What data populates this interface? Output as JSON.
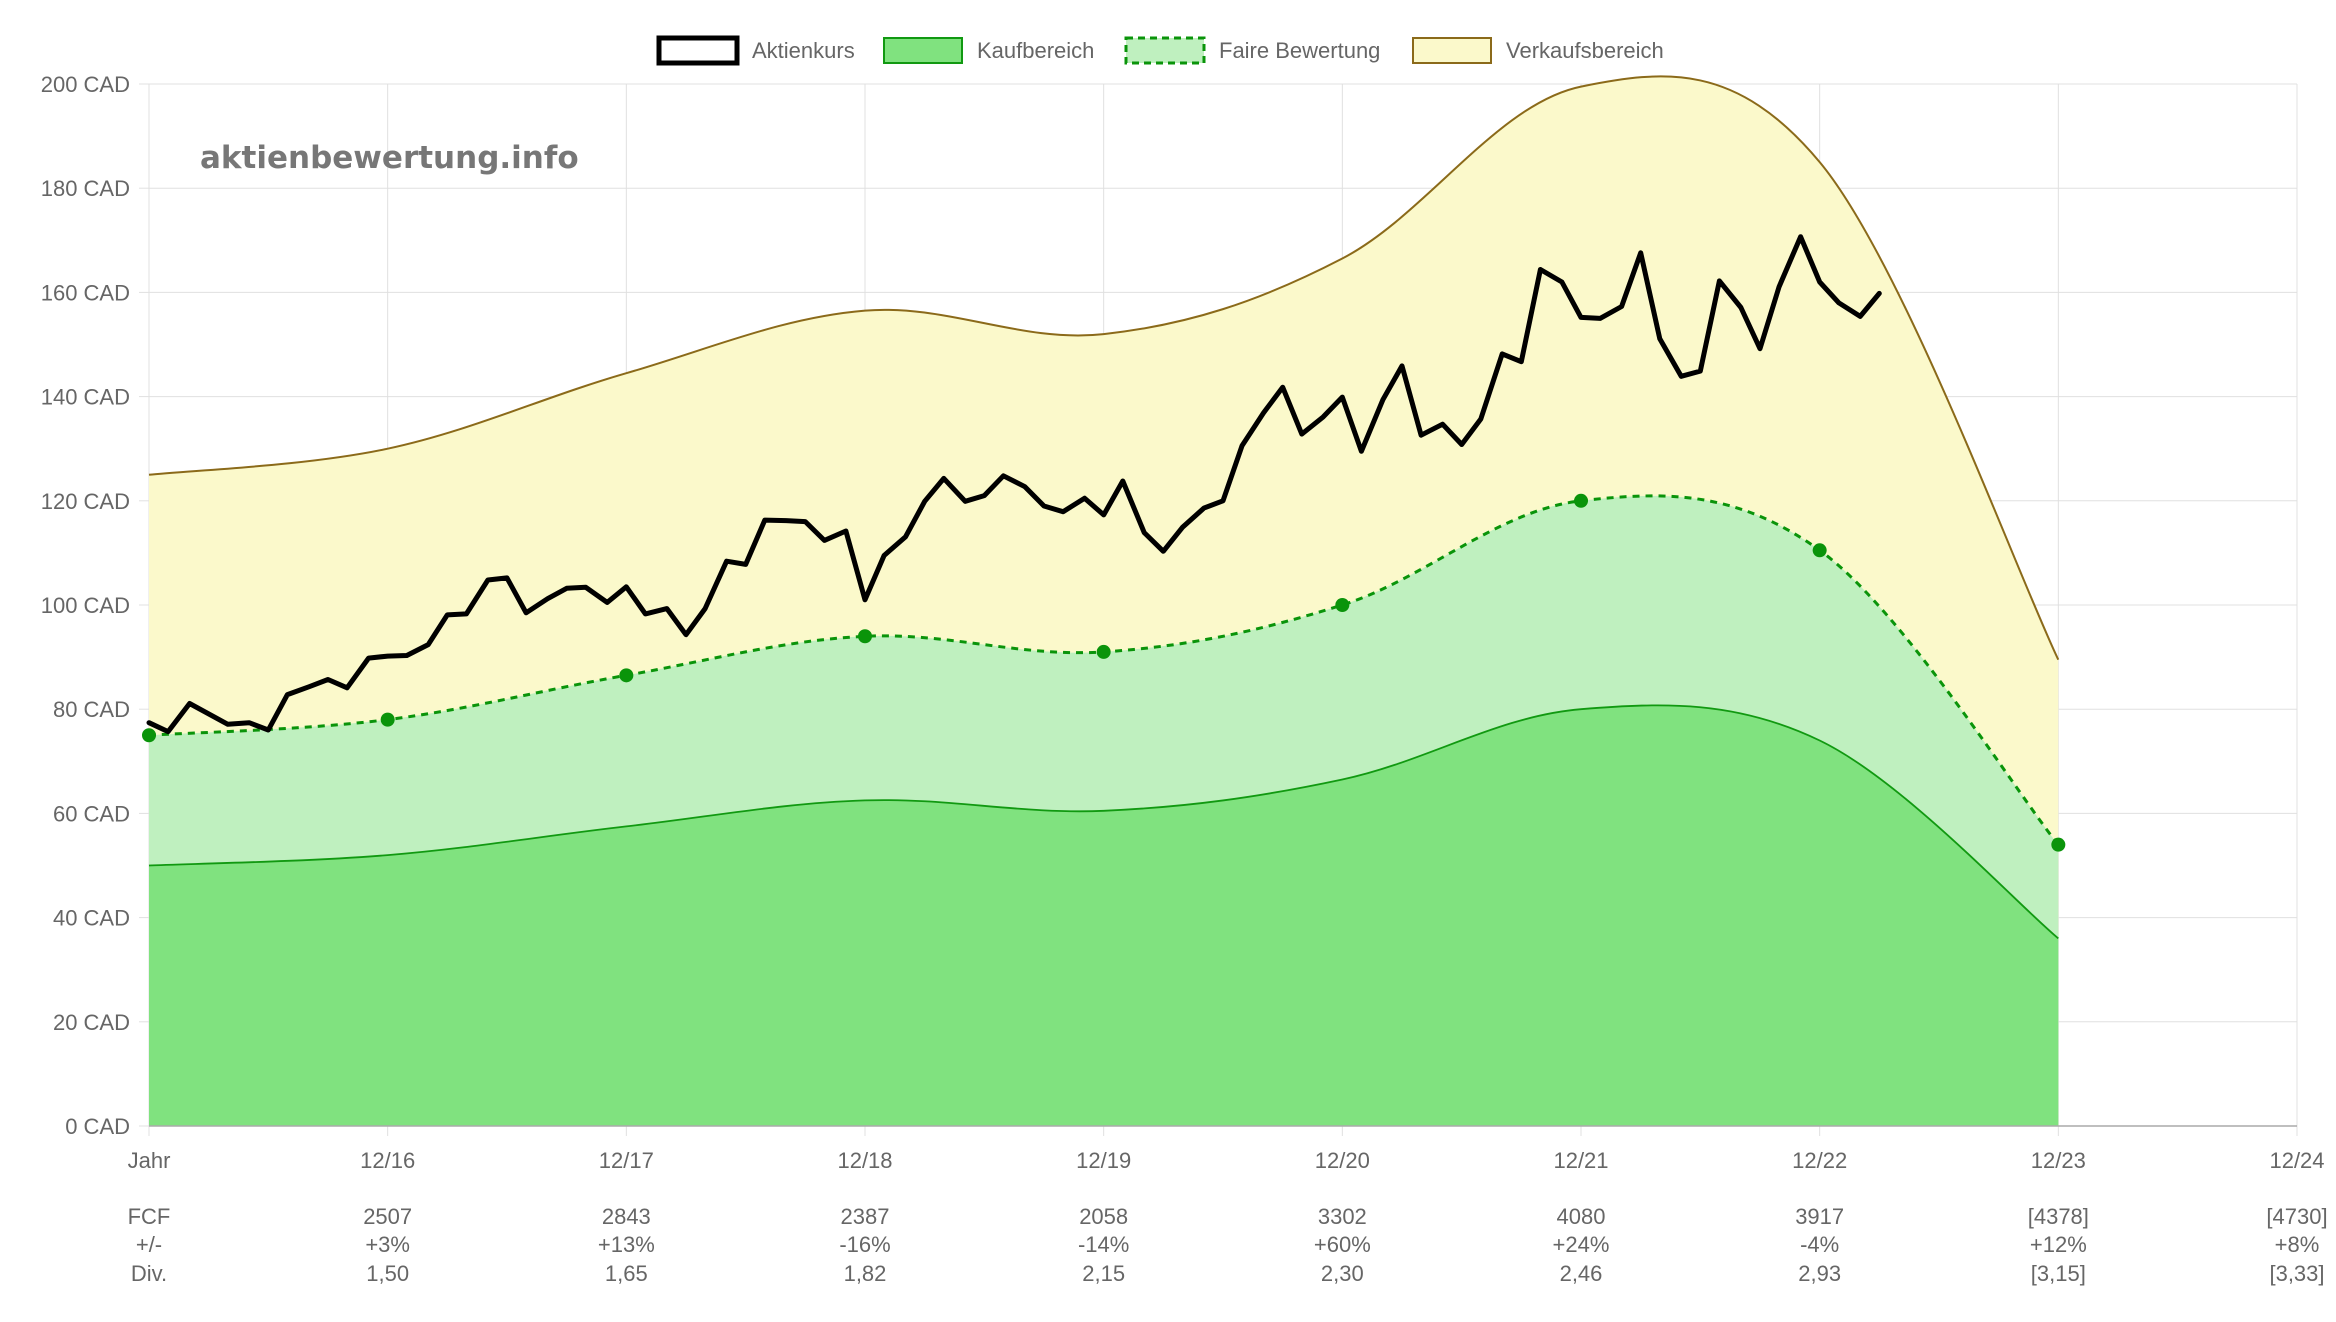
{
  "watermark": "aktienbewertung.info",
  "colors": {
    "price": "#000000",
    "buy_fill": "#80e27f",
    "buy_line": "#119911",
    "fair_fill": "#bff0bf",
    "fair_line": "#0a940a",
    "sell_fill": "#fbf9cb",
    "sell_line": "#8b6a1a",
    "grid": "#e0e0e0",
    "axis_text": "#666666"
  },
  "chart_data": {
    "type": "line",
    "legend_position": "top",
    "legend": [
      {
        "key": "price",
        "label": "Aktienkurs",
        "style": "thick-outline"
      },
      {
        "key": "buy",
        "label": "Kaufbereich",
        "style": "filled"
      },
      {
        "key": "fair",
        "label": "Faire Bewertung",
        "style": "dashed"
      },
      {
        "key": "sell",
        "label": "Verkaufsbereich",
        "style": "filled-outline"
      }
    ],
    "x_ticks": [
      "Jahr",
      "12/16",
      "12/17",
      "12/18",
      "12/19",
      "12/20",
      "12/21",
      "12/22",
      "12/23",
      "12/24"
    ],
    "x_range": [
      2015.0,
      2024.0
    ],
    "ylim": [
      0,
      200
    ],
    "y_ticks": [
      "0 CAD",
      "20 CAD",
      "40 CAD",
      "60 CAD",
      "80 CAD",
      "100 CAD",
      "120 CAD",
      "140 CAD",
      "160 CAD",
      "180 CAD",
      "200 CAD"
    ],
    "grid": true,
    "series": [
      {
        "key": "sell",
        "name": "Verkaufsbereich",
        "points": [
          [
            2015.0,
            125
          ],
          [
            2016.0,
            130
          ],
          [
            2017.0,
            144.5
          ],
          [
            2018.0,
            156.5
          ],
          [
            2019.0,
            152
          ],
          [
            2020.0,
            166.5
          ],
          [
            2021.0,
            199.5
          ],
          [
            2022.0,
            185
          ],
          [
            2023.0,
            89.5
          ]
        ]
      },
      {
        "key": "fair",
        "name": "Faire Bewertung",
        "points": [
          [
            2015.0,
            75
          ],
          [
            2016.0,
            78
          ],
          [
            2017.0,
            86.5
          ],
          [
            2018.0,
            94
          ],
          [
            2019.0,
            91
          ],
          [
            2020.0,
            100
          ],
          [
            2021.0,
            120
          ],
          [
            2022.0,
            110.5
          ],
          [
            2023.0,
            54
          ]
        ]
      },
      {
        "key": "buy",
        "name": "Kaufbereich",
        "points": [
          [
            2015.0,
            50
          ],
          [
            2016.0,
            52
          ],
          [
            2017.0,
            57.5
          ],
          [
            2018.0,
            62.5
          ],
          [
            2019.0,
            60.5
          ],
          [
            2020.0,
            66.5
          ],
          [
            2021.0,
            80
          ],
          [
            2022.0,
            74
          ],
          [
            2023.0,
            36
          ]
        ]
      },
      {
        "key": "price",
        "name": "Aktienkurs",
        "points": [
          [
            2015.0,
            77.4
          ],
          [
            2015.08,
            75.7
          ],
          [
            2015.17,
            81.1
          ],
          [
            2015.33,
            77.1
          ],
          [
            2015.42,
            77.4
          ],
          [
            2015.5,
            76.0
          ],
          [
            2015.58,
            82.8
          ],
          [
            2015.67,
            84.3
          ],
          [
            2015.75,
            85.7
          ],
          [
            2015.83,
            84.1
          ],
          [
            2015.92,
            89.8
          ],
          [
            2016.0,
            90.2
          ],
          [
            2016.08,
            90.3
          ],
          [
            2016.17,
            92.4
          ],
          [
            2016.25,
            98.1
          ],
          [
            2016.33,
            98.3
          ],
          [
            2016.42,
            104.8
          ],
          [
            2016.5,
            105.2
          ],
          [
            2016.58,
            98.5
          ],
          [
            2016.67,
            101.2
          ],
          [
            2016.75,
            103.2
          ],
          [
            2016.83,
            103.4
          ],
          [
            2016.92,
            100.5
          ],
          [
            2017.0,
            103.5
          ],
          [
            2017.08,
            98.3
          ],
          [
            2017.17,
            99.3
          ],
          [
            2017.25,
            94.3
          ],
          [
            2017.33,
            99.3
          ],
          [
            2017.42,
            108.4
          ],
          [
            2017.5,
            107.8
          ],
          [
            2017.58,
            116.3
          ],
          [
            2017.67,
            116.2
          ],
          [
            2017.75,
            116.0
          ],
          [
            2017.83,
            112.4
          ],
          [
            2017.92,
            114.2
          ],
          [
            2018.0,
            101.0
          ],
          [
            2018.08,
            109.5
          ],
          [
            2018.17,
            113.1
          ],
          [
            2018.25,
            119.9
          ],
          [
            2018.33,
            124.3
          ],
          [
            2018.42,
            119.9
          ],
          [
            2018.5,
            121.0
          ],
          [
            2018.58,
            124.8
          ],
          [
            2018.67,
            122.7
          ],
          [
            2018.75,
            119.0
          ],
          [
            2018.83,
            117.9
          ],
          [
            2018.92,
            120.5
          ],
          [
            2019.0,
            117.3
          ],
          [
            2019.08,
            123.8
          ],
          [
            2019.17,
            113.9
          ],
          [
            2019.25,
            110.3
          ],
          [
            2019.33,
            114.9
          ],
          [
            2019.42,
            118.6
          ],
          [
            2019.5,
            120.0
          ],
          [
            2019.58,
            130.6
          ],
          [
            2019.67,
            136.9
          ],
          [
            2019.75,
            141.8
          ],
          [
            2019.83,
            132.8
          ],
          [
            2019.92,
            136.1
          ],
          [
            2020.0,
            139.9
          ],
          [
            2020.08,
            129.5
          ],
          [
            2020.17,
            139.4
          ],
          [
            2020.25,
            145.9
          ],
          [
            2020.33,
            132.6
          ],
          [
            2020.42,
            134.7
          ],
          [
            2020.5,
            130.8
          ],
          [
            2020.58,
            135.7
          ],
          [
            2020.67,
            148.2
          ],
          [
            2020.75,
            146.7
          ],
          [
            2020.83,
            164.4
          ],
          [
            2020.92,
            162.0
          ],
          [
            2021.0,
            155.2
          ],
          [
            2021.08,
            155.0
          ],
          [
            2021.17,
            157.3
          ],
          [
            2021.25,
            167.6
          ],
          [
            2021.33,
            151.1
          ],
          [
            2021.42,
            143.9
          ],
          [
            2021.5,
            144.9
          ],
          [
            2021.58,
            162.2
          ],
          [
            2021.67,
            157.1
          ],
          [
            2021.75,
            149.2
          ],
          [
            2021.83,
            161.1
          ],
          [
            2021.92,
            170.7
          ],
          [
            2022.0,
            162.0
          ],
          [
            2022.08,
            158.0
          ],
          [
            2022.17,
            155.4
          ],
          [
            2022.25,
            159.8
          ]
        ]
      }
    ],
    "footer": {
      "labels": [
        "FCF",
        "+/-",
        "Div."
      ],
      "columns": [
        {
          "fcf": "2507",
          "change": "+3%",
          "div": "1,50"
        },
        {
          "fcf": "2843",
          "change": "+13%",
          "div": "1,65"
        },
        {
          "fcf": "2387",
          "change": "-16%",
          "div": "1,82"
        },
        {
          "fcf": "2058",
          "change": "-14%",
          "div": "2,15"
        },
        {
          "fcf": "3302",
          "change": "+60%",
          "div": "2,30"
        },
        {
          "fcf": "4080",
          "change": "+24%",
          "div": "2,46"
        },
        {
          "fcf": "3917",
          "change": "-4%",
          "div": "2,93"
        },
        {
          "fcf": "[4378]",
          "change": "+12%",
          "div": "[3,15]"
        },
        {
          "fcf": "[4730]",
          "change": "+8%",
          "div": "[3,33]"
        }
      ]
    }
  }
}
